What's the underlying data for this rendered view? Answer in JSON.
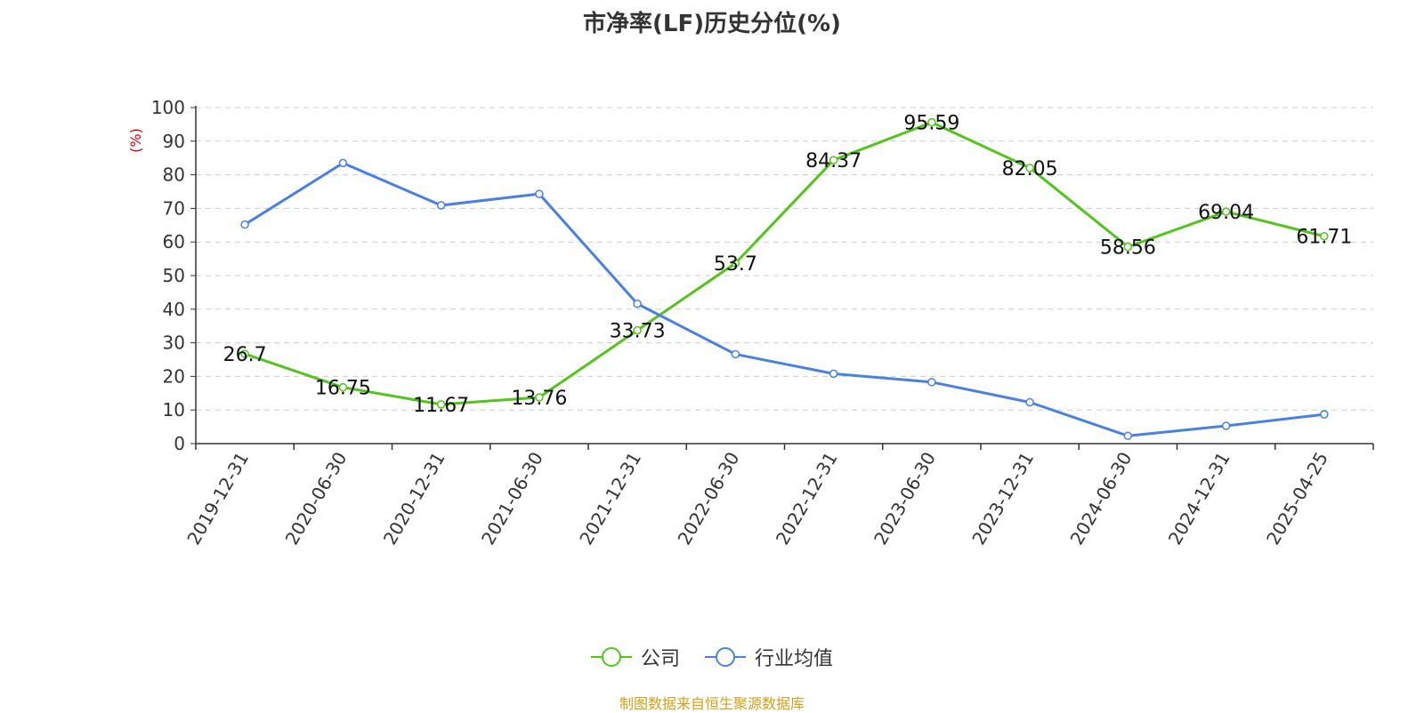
{
  "chart_data": {
    "type": "line",
    "title": "市净率(LF)历史分位(%)",
    "ylabel": "(%)",
    "xlabel": "",
    "ylim": [
      0,
      100
    ],
    "yticks": [
      0,
      10,
      20,
      30,
      40,
      50,
      60,
      70,
      80,
      90,
      100
    ],
    "grid": true,
    "legend_position": "bottom",
    "categories": [
      "2019-12-31",
      "2020-06-30",
      "2020-12-31",
      "2021-06-30",
      "2021-12-31",
      "2022-06-30",
      "2022-12-31",
      "2023-06-30",
      "2023-12-31",
      "2024-06-30",
      "2024-12-31",
      "2025-04-25"
    ],
    "series": [
      {
        "name": "公司",
        "color": "#52c41a",
        "values": [
          26.7,
          16.75,
          11.67,
          13.76,
          33.73,
          53.7,
          84.37,
          95.59,
          82.05,
          58.56,
          69.04,
          61.71
        ],
        "labels": [
          "26.7",
          "16.75",
          "11.67",
          "13.76",
          "33.73",
          "53.7",
          "84.37",
          "95.59",
          "82.05",
          "58.56",
          "69.04",
          "61.71"
        ]
      },
      {
        "name": "行业均值",
        "color": "#4a80e0",
        "values": [
          65.2,
          83.5,
          70.9,
          74.3,
          41.6,
          26.6,
          20.8,
          18.3,
          12.3,
          2.3,
          5.3,
          8.7
        ]
      }
    ]
  },
  "source": "制图数据来自恒生聚源数据库"
}
